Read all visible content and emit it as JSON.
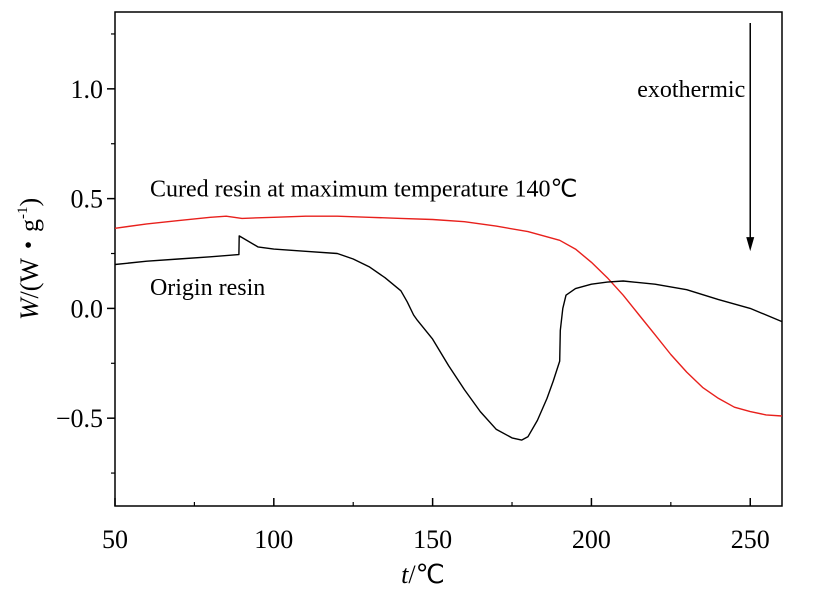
{
  "chart_data": {
    "type": "line",
    "xlabel_var": "t",
    "xlabel_unit": "/℃",
    "ylabel_var": "W",
    "ylabel_unit": "/(W・g",
    "ylabel_sup": "-1",
    "ylabel_close": ")",
    "xlim": [
      50,
      260
    ],
    "ylim": [
      -0.9,
      1.35
    ],
    "xticks": [
      50,
      100,
      150,
      200,
      250
    ],
    "xtick_labels": [
      "50",
      "100",
      "150",
      "200",
      "250"
    ],
    "yticks": [
      -0.5,
      0.0,
      0.5,
      1.0
    ],
    "ytick_labels": [
      "−0.5",
      "0.0",
      "0.5",
      "1.0"
    ],
    "grid": false,
    "annotations": {
      "exothermic": "exothermic",
      "exothermic_arrow": {
        "x": 250,
        "y_from": 1.3,
        "y_to": 0.27
      }
    },
    "series": [
      {
        "name": "Cured resin at maximum temperature 140℃",
        "color": "#e8201c",
        "x": [
          50,
          60,
          70,
          80,
          85,
          90,
          100,
          110,
          120,
          130,
          140,
          150,
          160,
          170,
          180,
          190,
          195,
          200,
          205,
          210,
          215,
          220,
          225,
          230,
          235,
          240,
          245,
          250,
          255,
          260
        ],
        "y": [
          0.365,
          0.385,
          0.4,
          0.415,
          0.42,
          0.41,
          0.415,
          0.42,
          0.42,
          0.415,
          0.41,
          0.405,
          0.395,
          0.375,
          0.35,
          0.31,
          0.27,
          0.21,
          0.14,
          0.06,
          -0.03,
          -0.12,
          -0.21,
          -0.29,
          -0.36,
          -0.41,
          -0.45,
          -0.47,
          -0.485,
          -0.49
        ]
      },
      {
        "name": "Origin resin",
        "color": "#000000",
        "x": [
          50,
          60,
          70,
          80,
          88.9,
          89,
          89.1,
          95,
          100,
          110,
          120,
          125,
          130,
          135,
          140,
          142,
          144,
          145,
          150,
          155,
          160,
          165,
          170,
          175,
          178,
          180,
          183,
          186,
          188,
          190,
          190.2,
          191,
          192,
          195,
          200,
          205,
          210,
          220,
          230,
          240,
          250,
          260
        ],
        "y": [
          0.2,
          0.215,
          0.225,
          0.235,
          0.245,
          0.245,
          0.33,
          0.28,
          0.27,
          0.26,
          0.25,
          0.225,
          0.19,
          0.14,
          0.08,
          0.03,
          -0.03,
          -0.05,
          -0.14,
          -0.26,
          -0.37,
          -0.47,
          -0.55,
          -0.59,
          -0.6,
          -0.585,
          -0.51,
          -0.41,
          -0.33,
          -0.24,
          -0.1,
          0.0,
          0.06,
          0.09,
          0.11,
          0.12,
          0.125,
          0.11,
          0.085,
          0.04,
          0.0,
          -0.06
        ]
      }
    ],
    "labels": [
      {
        "series": "Cured resin at maximum temperature 140℃",
        "text": "Cured resin at maximum temperature 140℃",
        "x": 61,
        "y": 0.51
      },
      {
        "series": "Origin resin",
        "text": "Origin resin",
        "x": 61,
        "y": 0.06
      }
    ]
  }
}
